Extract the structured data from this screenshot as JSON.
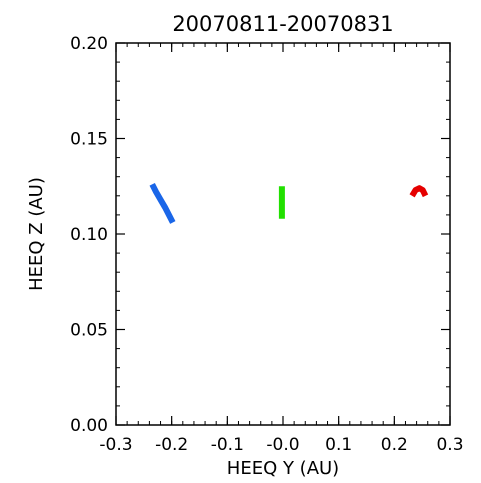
{
  "chart_data": {
    "type": "line",
    "title": "20070811-20070831",
    "xlabel": "HEEQ Y (AU)",
    "ylabel": "HEEQ Z (AU)",
    "xlim": [
      -0.3,
      0.3
    ],
    "ylim": [
      0.0,
      0.2
    ],
    "xticks": [
      "-0.3",
      "-0.2",
      "-0.1",
      "-0.0",
      "0.1",
      "0.2",
      "0.3"
    ],
    "yticks": [
      "0.00",
      "0.05",
      "0.10",
      "0.15",
      "0.20"
    ],
    "grid": false,
    "series": [
      {
        "color": "#1a66e8",
        "points": [
          [
            -0.235,
            0.126
          ],
          [
            -0.228,
            0.122
          ],
          [
            -0.22,
            0.118
          ],
          [
            -0.212,
            0.114
          ],
          [
            -0.205,
            0.11
          ],
          [
            -0.198,
            0.106
          ]
        ]
      },
      {
        "color": "#22e000",
        "points": [
          [
            -0.002,
            0.108
          ],
          [
            -0.002,
            0.114
          ],
          [
            -0.002,
            0.12
          ],
          [
            -0.002,
            0.125
          ]
        ]
      },
      {
        "color": "#e50000",
        "points": [
          [
            0.232,
            0.12
          ],
          [
            0.238,
            0.123
          ],
          [
            0.245,
            0.124
          ],
          [
            0.251,
            0.123
          ],
          [
            0.256,
            0.12
          ]
        ]
      }
    ]
  }
}
